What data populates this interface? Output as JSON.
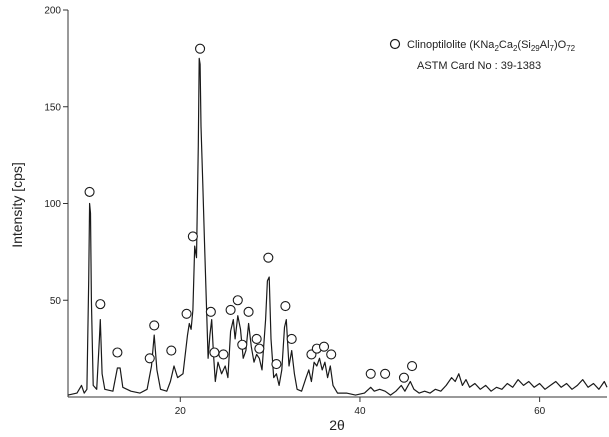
{
  "chart_data": {
    "type": "line",
    "xlabel": "2θ",
    "ylabel": "Intensity [cps]",
    "xlim": [
      7.5,
      67.5
    ],
    "ylim": [
      0,
      200
    ],
    "x_ticks": [
      20,
      40,
      60
    ],
    "y_ticks": [
      50,
      100,
      150,
      200
    ],
    "legend": {
      "position": "top-right",
      "marker": "open-circle",
      "name_prefix": "Clinoptilolite (KNa",
      "sub_1": "2",
      "name_mid_1": "Ca",
      "sub_2": "2",
      "name_mid_2": "(Si",
      "sub_3": "29",
      "name_mid_3": "Al",
      "sub_4": "7",
      "name_mid_4": ")O",
      "sub_5": "72",
      "card": "ASTM Card No : 39-1383"
    },
    "series": [
      {
        "color": "#1a1a1a",
        "points": [
          [
            7.5,
            1
          ],
          [
            8.5,
            2
          ],
          [
            9.0,
            6
          ],
          [
            9.3,
            2
          ],
          [
            9.6,
            4
          ],
          [
            9.8,
            60
          ],
          [
            9.9,
            100
          ],
          [
            10.0,
            95
          ],
          [
            10.1,
            50
          ],
          [
            10.3,
            6
          ],
          [
            10.7,
            4
          ],
          [
            11.0,
            30
          ],
          [
            11.1,
            40
          ],
          [
            11.3,
            12
          ],
          [
            11.6,
            4
          ],
          [
            12.5,
            3
          ],
          [
            13.0,
            15
          ],
          [
            13.3,
            15
          ],
          [
            13.6,
            5
          ],
          [
            14.5,
            3
          ],
          [
            15.5,
            2
          ],
          [
            16.3,
            4
          ],
          [
            16.8,
            16
          ],
          [
            17.1,
            32
          ],
          [
            17.4,
            14
          ],
          [
            17.8,
            4
          ],
          [
            18.5,
            3
          ],
          [
            18.9,
            8
          ],
          [
            19.3,
            16
          ],
          [
            19.7,
            10
          ],
          [
            20.3,
            12
          ],
          [
            20.8,
            32
          ],
          [
            21.0,
            38
          ],
          [
            21.2,
            35
          ],
          [
            21.4,
            45
          ],
          [
            21.6,
            78
          ],
          [
            21.8,
            72
          ],
          [
            22.0,
            130
          ],
          [
            22.1,
            175
          ],
          [
            22.2,
            172
          ],
          [
            22.3,
            140
          ],
          [
            22.5,
            110
          ],
          [
            22.7,
            80
          ],
          [
            22.9,
            50
          ],
          [
            23.1,
            20
          ],
          [
            23.3,
            32
          ],
          [
            23.5,
            40
          ],
          [
            23.7,
            22
          ],
          [
            23.9,
            8
          ],
          [
            24.2,
            18
          ],
          [
            24.6,
            12
          ],
          [
            25.0,
            16
          ],
          [
            25.3,
            10
          ],
          [
            25.6,
            34
          ],
          [
            25.9,
            40
          ],
          [
            26.1,
            30
          ],
          [
            26.4,
            42
          ],
          [
            26.7,
            35
          ],
          [
            27.0,
            20
          ],
          [
            27.3,
            24
          ],
          [
            27.6,
            38
          ],
          [
            27.9,
            26
          ],
          [
            28.2,
            18
          ],
          [
            28.5,
            22
          ],
          [
            28.8,
            20
          ],
          [
            29.1,
            14
          ],
          [
            29.5,
            40
          ],
          [
            29.7,
            60
          ],
          [
            29.9,
            62
          ],
          [
            30.1,
            30
          ],
          [
            30.4,
            10
          ],
          [
            30.7,
            12
          ],
          [
            31.0,
            6
          ],
          [
            31.3,
            14
          ],
          [
            31.6,
            36
          ],
          [
            31.8,
            40
          ],
          [
            32.1,
            16
          ],
          [
            32.4,
            24
          ],
          [
            32.7,
            12
          ],
          [
            33.0,
            4
          ],
          [
            33.5,
            3
          ],
          [
            34.0,
            10
          ],
          [
            34.3,
            14
          ],
          [
            34.6,
            8
          ],
          [
            34.9,
            18
          ],
          [
            35.2,
            16
          ],
          [
            35.5,
            20
          ],
          [
            35.8,
            14
          ],
          [
            36.1,
            18
          ],
          [
            36.4,
            10
          ],
          [
            36.7,
            16
          ],
          [
            37.0,
            6
          ],
          [
            37.5,
            2
          ],
          [
            38.5,
            2
          ],
          [
            39.5,
            1
          ],
          [
            40.5,
            2
          ],
          [
            41.2,
            5
          ],
          [
            41.6,
            3
          ],
          [
            42.2,
            4
          ],
          [
            42.8,
            3
          ],
          [
            43.4,
            1
          ],
          [
            44.0,
            3
          ],
          [
            44.6,
            6
          ],
          [
            45.0,
            3
          ],
          [
            45.6,
            8
          ],
          [
            46.0,
            4
          ],
          [
            46.6,
            2
          ],
          [
            47.2,
            3
          ],
          [
            47.8,
            2
          ],
          [
            48.4,
            4
          ],
          [
            49.0,
            3
          ],
          [
            49.6,
            6
          ],
          [
            50.2,
            10
          ],
          [
            50.6,
            8
          ],
          [
            51.0,
            12
          ],
          [
            51.4,
            6
          ],
          [
            51.8,
            9
          ],
          [
            52.2,
            5
          ],
          [
            52.8,
            7
          ],
          [
            53.4,
            4
          ],
          [
            54.0,
            6
          ],
          [
            54.6,
            3
          ],
          [
            55.2,
            5
          ],
          [
            55.8,
            4
          ],
          [
            56.4,
            7
          ],
          [
            57.0,
            5
          ],
          [
            57.6,
            9
          ],
          [
            58.2,
            6
          ],
          [
            58.8,
            8
          ],
          [
            59.4,
            5
          ],
          [
            60.0,
            7
          ],
          [
            60.6,
            4
          ],
          [
            61.2,
            6
          ],
          [
            61.8,
            8
          ],
          [
            62.4,
            5
          ],
          [
            63.0,
            7
          ],
          [
            63.6,
            4
          ],
          [
            64.2,
            6
          ],
          [
            64.8,
            9
          ],
          [
            65.4,
            5
          ],
          [
            66.0,
            7
          ],
          [
            66.6,
            4
          ],
          [
            67.2,
            8
          ],
          [
            67.5,
            5
          ]
        ]
      }
    ],
    "markers": [
      [
        9.9,
        106
      ],
      [
        11.1,
        48
      ],
      [
        13.0,
        23
      ],
      [
        16.6,
        20
      ],
      [
        17.1,
        37
      ],
      [
        19.0,
        24
      ],
      [
        20.7,
        43
      ],
      [
        21.4,
        83
      ],
      [
        22.2,
        180
      ],
      [
        23.4,
        44
      ],
      [
        23.8,
        23
      ],
      [
        24.8,
        22
      ],
      [
        25.6,
        45
      ],
      [
        26.4,
        50
      ],
      [
        26.9,
        27
      ],
      [
        27.6,
        44
      ],
      [
        28.5,
        30
      ],
      [
        28.8,
        25
      ],
      [
        29.8,
        72
      ],
      [
        30.7,
        17
      ],
      [
        31.7,
        47
      ],
      [
        32.4,
        30
      ],
      [
        34.6,
        22
      ],
      [
        35.2,
        25
      ],
      [
        36.0,
        26
      ],
      [
        36.8,
        22
      ],
      [
        41.2,
        12
      ],
      [
        42.8,
        12
      ],
      [
        44.9,
        10
      ],
      [
        45.8,
        16
      ]
    ]
  }
}
